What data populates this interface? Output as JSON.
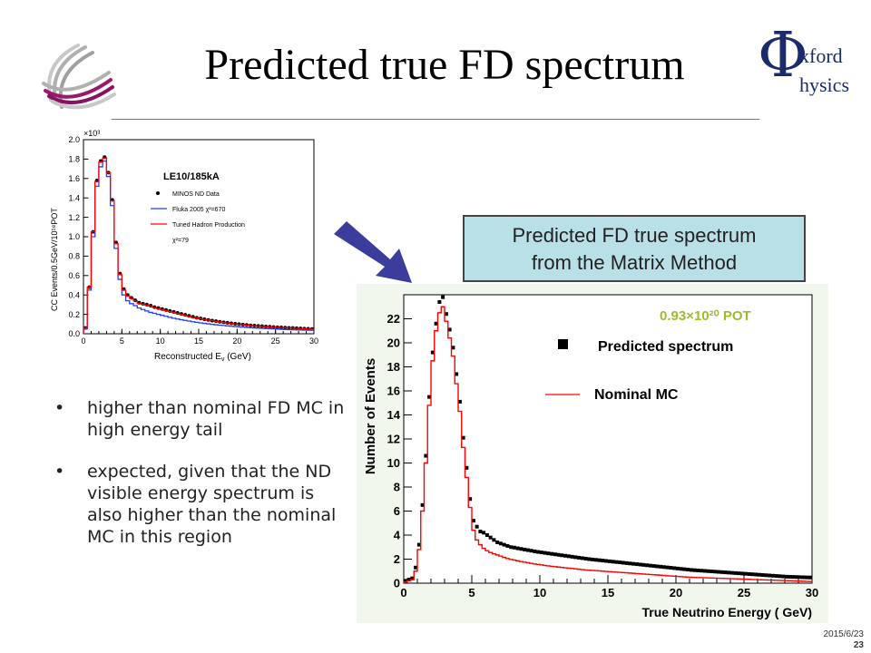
{
  "slide": {
    "title": "Predicted true FD spectrum",
    "logo_right": {
      "phi": "Φ",
      "line1": "xford",
      "line2": "hysics"
    },
    "logo_left_icon": "swirl-globe-icon",
    "arrow_icon": "diagonal-arrow-icon",
    "callout": {
      "line1": "Predicted FD true spectrum",
      "line2": "from the Matrix Method"
    },
    "bullets": [
      "higher than nominal FD MC in high energy tail",
      "expected, given that the ND visible energy spectrum is also higher than the nominal MC in this region"
    ],
    "footer": {
      "date": "2015/6/23",
      "slide_number": "23"
    }
  },
  "colors": {
    "accent_arrow": "#3c3c9c",
    "callout_bg": "#b8e0e6",
    "pot_label": "#9dbb2e",
    "fluka": "#1f3fff",
    "tuned": "#ff0000",
    "data": "#000000",
    "plot_bg": "#f2f7ee"
  },
  "chart_data": [
    {
      "type": "line",
      "title": "LE10/185kA",
      "exponent": "×10³",
      "xlabel": "Reconstructed E",
      "xlabel_sub": "ν",
      "xlabel_unit": " (GeV)",
      "ylabel": "CC Events/0.5GeV/10¹⁸POT",
      "xlim": [
        0,
        30
      ],
      "ylim": [
        0,
        2.0
      ],
      "xticks": [
        0,
        5,
        10,
        15,
        20,
        25,
        30
      ],
      "yticks": [
        "0.0",
        "0.2",
        "0.4",
        "0.6",
        "0.8",
        "1.0",
        "1.2",
        "1.4",
        "1.6",
        "1.8",
        "2.0"
      ],
      "legend": [
        {
          "name": "MINOS ND Data",
          "kind": "marker"
        },
        {
          "name": "Fluka 2005 χ²=670",
          "kind": "line",
          "color": "#1f3fff"
        },
        {
          "name": "Tuned Hadron Production",
          "kind": "line",
          "color": "#ff0000"
        },
        {
          "name": "χ²=79",
          "kind": "text"
        }
      ],
      "bin_width": 0.5,
      "series": [
        {
          "name": "MINOS ND Data",
          "style": "marker",
          "values": [
            0.06,
            0.48,
            1.05,
            1.58,
            1.78,
            1.82,
            1.66,
            1.38,
            0.94,
            0.62,
            0.46,
            0.4,
            0.37,
            0.345,
            0.32,
            0.31,
            0.3,
            0.29,
            0.275,
            0.265,
            0.255,
            0.245,
            0.235,
            0.225,
            0.215,
            0.205,
            0.195,
            0.185,
            0.175,
            0.165,
            0.158,
            0.15,
            0.143,
            0.136,
            0.13,
            0.124,
            0.118,
            0.113,
            0.108,
            0.103,
            0.099,
            0.095,
            0.091,
            0.087,
            0.084,
            0.081,
            0.078,
            0.075,
            0.072,
            0.069,
            0.067,
            0.065,
            0.063,
            0.061,
            0.059,
            0.057,
            0.055,
            0.053,
            0.051,
            0.049
          ]
        },
        {
          "name": "Fluka 2005 χ²=670",
          "style": "hist",
          "color": "#1f3fff",
          "values": [
            0.05,
            0.45,
            1.0,
            1.52,
            1.72,
            1.78,
            1.62,
            1.32,
            0.88,
            0.56,
            0.4,
            0.34,
            0.31,
            0.29,
            0.265,
            0.25,
            0.235,
            0.22,
            0.21,
            0.2,
            0.19,
            0.18,
            0.17,
            0.16,
            0.152,
            0.145,
            0.138,
            0.131,
            0.124,
            0.118,
            0.112,
            0.107,
            0.102,
            0.097,
            0.093,
            0.089,
            0.085,
            0.081,
            0.077,
            0.074,
            0.071,
            0.068,
            0.065,
            0.062,
            0.06,
            0.058,
            0.056,
            0.054,
            0.052,
            0.05,
            0.048,
            0.046,
            0.044,
            0.042,
            0.041,
            0.04,
            0.039,
            0.038,
            0.037,
            0.036
          ]
        },
        {
          "name": "Tuned Hadron Production",
          "style": "hist",
          "color": "#ff0000",
          "values": [
            0.06,
            0.48,
            1.05,
            1.57,
            1.77,
            1.81,
            1.66,
            1.37,
            0.93,
            0.61,
            0.45,
            0.39,
            0.365,
            0.34,
            0.315,
            0.305,
            0.295,
            0.285,
            0.27,
            0.26,
            0.25,
            0.24,
            0.23,
            0.22,
            0.21,
            0.2,
            0.19,
            0.18,
            0.17,
            0.162,
            0.155,
            0.148,
            0.141,
            0.134,
            0.128,
            0.122,
            0.116,
            0.111,
            0.106,
            0.101,
            0.097,
            0.093,
            0.089,
            0.085,
            0.082,
            0.079,
            0.076,
            0.073,
            0.07,
            0.068,
            0.066,
            0.064,
            0.062,
            0.06,
            0.058,
            0.056,
            0.054,
            0.052,
            0.05,
            0.048
          ]
        }
      ]
    },
    {
      "type": "line",
      "annotation": "0.93×10²⁰ POT",
      "xlabel": "True Neutrino Energy ( GeV)",
      "ylabel": "Number of Events",
      "xlim": [
        0,
        30
      ],
      "ylim": [
        0,
        24
      ],
      "xticks": [
        0,
        5,
        10,
        15,
        20,
        25,
        30
      ],
      "yticks": [
        0,
        2,
        4,
        6,
        8,
        10,
        12,
        14,
        16,
        18,
        20,
        22
      ],
      "legend": [
        {
          "name": "Predicted spectrum",
          "kind": "marker"
        },
        {
          "name": "Nominal MC",
          "kind": "line",
          "color": "#ff0000"
        }
      ],
      "bin_width": 0.25,
      "series": [
        {
          "name": "Predicted spectrum",
          "style": "marker",
          "values": [
            0.2,
            0.3,
            0.4,
            1.3,
            3.2,
            6.5,
            10.6,
            15.5,
            19.2,
            21.6,
            23.4,
            23.8,
            22.4,
            21.1,
            19.6,
            17.4,
            15.1,
            12.1,
            9.6,
            7.0,
            5.2,
            4.7,
            4.3,
            4.2,
            4.0,
            3.8,
            3.6,
            3.4,
            3.3,
            3.2,
            3.1,
            3.0,
            2.96,
            2.9,
            2.85,
            2.8,
            2.75,
            2.7,
            2.65,
            2.6,
            2.56,
            2.52,
            2.48,
            2.44,
            2.4,
            2.36,
            2.32,
            2.28,
            2.24,
            2.2,
            2.16,
            2.12,
            2.08,
            2.04,
            2.0,
            1.97,
            1.94,
            1.91,
            1.88,
            1.85,
            1.82,
            1.79,
            1.76,
            1.73,
            1.7,
            1.67,
            1.64,
            1.61,
            1.58,
            1.55,
            1.52,
            1.49,
            1.46,
            1.43,
            1.4,
            1.37,
            1.34,
            1.31,
            1.28,
            1.25,
            1.22,
            1.19,
            1.16,
            1.13,
            1.1,
            1.08,
            1.06,
            1.04,
            1.02,
            1.0,
            0.98,
            0.96,
            0.94,
            0.92,
            0.9,
            0.88,
            0.86,
            0.84,
            0.82,
            0.8,
            0.78,
            0.76,
            0.74,
            0.72,
            0.7,
            0.68,
            0.66,
            0.64,
            0.62,
            0.6,
            0.58,
            0.56,
            0.54,
            0.53,
            0.52,
            0.51,
            0.5,
            0.49,
            0.48,
            0.47
          ]
        },
        {
          "name": "Nominal MC",
          "style": "hist",
          "color": "#ff0000",
          "values": [
            0.1,
            0.2,
            0.3,
            1.0,
            2.8,
            6.0,
            10.0,
            14.8,
            18.5,
            21.0,
            22.5,
            23.0,
            21.8,
            20.4,
            18.9,
            16.6,
            14.3,
            11.3,
            8.8,
            6.3,
            4.4,
            3.6,
            3.2,
            2.9,
            2.7,
            2.55,
            2.45,
            2.35,
            2.25,
            2.15,
            2.05,
            1.98,
            1.92,
            1.86,
            1.8,
            1.75,
            1.7,
            1.65,
            1.6,
            1.56,
            1.52,
            1.48,
            1.44,
            1.4,
            1.37,
            1.34,
            1.31,
            1.28,
            1.25,
            1.22,
            1.19,
            1.16,
            1.13,
            1.1,
            1.08,
            1.06,
            1.04,
            1.02,
            1.0,
            0.98,
            0.96,
            0.94,
            0.92,
            0.9,
            0.88,
            0.86,
            0.84,
            0.82,
            0.8,
            0.78,
            0.76,
            0.74,
            0.72,
            0.7,
            0.68,
            0.66,
            0.64,
            0.62,
            0.6,
            0.58,
            0.56,
            0.54,
            0.52,
            0.5,
            0.49,
            0.48,
            0.47,
            0.46,
            0.45,
            0.44,
            0.43,
            0.42,
            0.41,
            0.4,
            0.39,
            0.38,
            0.37,
            0.36,
            0.35,
            0.34,
            0.33,
            0.32,
            0.31,
            0.3,
            0.29,
            0.28,
            0.27,
            0.26,
            0.25,
            0.24,
            0.23,
            0.22,
            0.21,
            0.2,
            0.19,
            0.18,
            0.17,
            0.16,
            0.15,
            0.14
          ]
        }
      ]
    }
  ]
}
